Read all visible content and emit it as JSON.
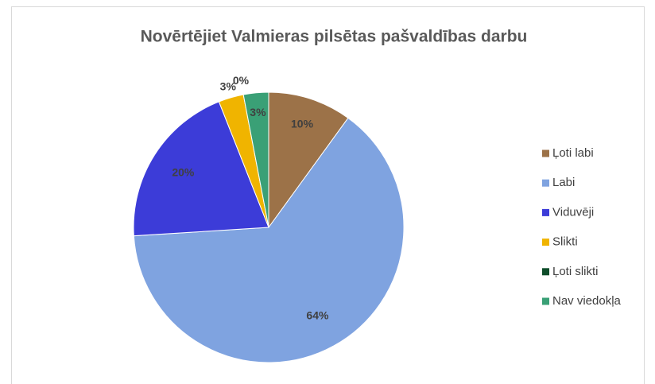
{
  "chart_data": {
    "type": "pie",
    "title": "Novērtējiet Valmieras pilsētas pašvaldības darbu",
    "categories": [
      "Ļoti labi",
      "Labi",
      "Viduvēji",
      "Slikti",
      "Ļoti slikti",
      "Nav viedokļa"
    ],
    "values": [
      10,
      64,
      20,
      3,
      0,
      3
    ],
    "value_labels": [
      "10%",
      "64%",
      "20%",
      "3%",
      "0%",
      "3%"
    ],
    "colors": [
      "#9c7248",
      "#7fa3e0",
      "#3c3cd8",
      "#f0b400",
      "#0e4d2a",
      "#3aa076"
    ],
    "legend": "right"
  }
}
